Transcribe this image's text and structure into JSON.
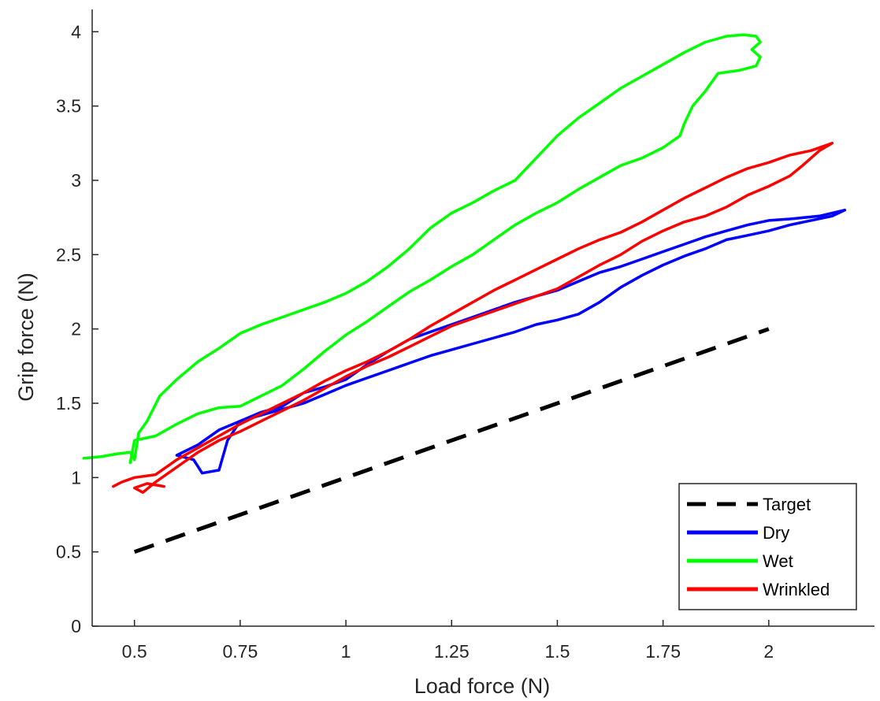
{
  "chart_data": {
    "type": "line",
    "title": "",
    "xlabel": "Load force (N)",
    "ylabel": "Grip force (N)",
    "xlim": [
      0.4,
      2.25
    ],
    "ylim": [
      0,
      4.15
    ],
    "x_ticks": [
      0.5,
      0.75,
      1,
      1.25,
      1.5,
      1.75,
      2
    ],
    "x_tick_labels": [
      "0.5",
      "0.75",
      "1",
      "1.25",
      "1.5",
      "1.75",
      "2"
    ],
    "y_ticks": [
      0,
      0.5,
      1,
      1.5,
      2,
      2.5,
      3,
      3.5,
      4
    ],
    "y_tick_labels": [
      "0",
      "0.5",
      "1",
      "1.5",
      "2",
      "2.5",
      "3",
      "3.5",
      "4"
    ],
    "grid": false,
    "legend_position": "bottom-right",
    "series": [
      {
        "name": "Target",
        "color": "#000000",
        "style": "dashed",
        "points": [
          [
            0.5,
            0.5
          ],
          [
            2.0,
            2.0
          ]
        ]
      },
      {
        "name": "Dry",
        "color": "#0000ff",
        "style": "solid",
        "points": [
          [
            0.6,
            1.15
          ],
          [
            0.65,
            1.22
          ],
          [
            0.7,
            1.32
          ],
          [
            0.75,
            1.38
          ],
          [
            0.8,
            1.42
          ],
          [
            0.85,
            1.46
          ],
          [
            0.9,
            1.5
          ],
          [
            0.95,
            1.56
          ],
          [
            1.0,
            1.62
          ],
          [
            1.05,
            1.67
          ],
          [
            1.1,
            1.72
          ],
          [
            1.15,
            1.77
          ],
          [
            1.2,
            1.82
          ],
          [
            1.25,
            1.86
          ],
          [
            1.3,
            1.9
          ],
          [
            1.35,
            1.94
          ],
          [
            1.4,
            1.98
          ],
          [
            1.45,
            2.03
          ],
          [
            1.5,
            2.06
          ],
          [
            1.55,
            2.1
          ],
          [
            1.6,
            2.18
          ],
          [
            1.65,
            2.28
          ],
          [
            1.7,
            2.36
          ],
          [
            1.75,
            2.43
          ],
          [
            1.8,
            2.49
          ],
          [
            1.85,
            2.54
          ],
          [
            1.9,
            2.6
          ],
          [
            1.95,
            2.63
          ],
          [
            2.0,
            2.66
          ],
          [
            2.05,
            2.7
          ],
          [
            2.1,
            2.73
          ],
          [
            2.15,
            2.76
          ],
          [
            2.18,
            2.8
          ],
          [
            2.12,
            2.76
          ],
          [
            2.05,
            2.74
          ],
          [
            2.0,
            2.73
          ],
          [
            1.95,
            2.7
          ],
          [
            1.9,
            2.66
          ],
          [
            1.85,
            2.62
          ],
          [
            1.8,
            2.57
          ],
          [
            1.75,
            2.52
          ],
          [
            1.7,
            2.47
          ],
          [
            1.65,
            2.42
          ],
          [
            1.6,
            2.38
          ],
          [
            1.55,
            2.32
          ],
          [
            1.5,
            2.26
          ],
          [
            1.45,
            2.22
          ],
          [
            1.4,
            2.18
          ],
          [
            1.35,
            2.13
          ],
          [
            1.3,
            2.08
          ],
          [
            1.25,
            2.03
          ],
          [
            1.2,
            1.98
          ],
          [
            1.15,
            1.93
          ],
          [
            1.1,
            1.85
          ],
          [
            1.05,
            1.76
          ],
          [
            1.0,
            1.66
          ],
          [
            0.95,
            1.61
          ],
          [
            0.9,
            1.57
          ],
          [
            0.85,
            1.48
          ],
          [
            0.8,
            1.44
          ],
          [
            0.75,
            1.38
          ],
          [
            0.72,
            1.25
          ],
          [
            0.7,
            1.05
          ],
          [
            0.66,
            1.03
          ],
          [
            0.64,
            1.12
          ],
          [
            0.6,
            1.15
          ]
        ]
      },
      {
        "name": "Wet",
        "color": "#00ff00",
        "style": "solid",
        "points": [
          [
            0.38,
            1.13
          ],
          [
            0.42,
            1.14
          ],
          [
            0.46,
            1.16
          ],
          [
            0.49,
            1.17
          ],
          [
            0.5,
            1.12
          ],
          [
            0.51,
            1.3
          ],
          [
            0.53,
            1.38
          ],
          [
            0.56,
            1.55
          ],
          [
            0.6,
            1.66
          ],
          [
            0.65,
            1.78
          ],
          [
            0.7,
            1.87
          ],
          [
            0.75,
            1.97
          ],
          [
            0.8,
            2.03
          ],
          [
            0.85,
            2.08
          ],
          [
            0.9,
            2.13
          ],
          [
            0.95,
            2.18
          ],
          [
            1.0,
            2.24
          ],
          [
            1.05,
            2.32
          ],
          [
            1.1,
            2.42
          ],
          [
            1.15,
            2.54
          ],
          [
            1.2,
            2.68
          ],
          [
            1.25,
            2.78
          ],
          [
            1.3,
            2.85
          ],
          [
            1.35,
            2.93
          ],
          [
            1.4,
            3.0
          ],
          [
            1.45,
            3.15
          ],
          [
            1.5,
            3.3
          ],
          [
            1.55,
            3.42
          ],
          [
            1.6,
            3.52
          ],
          [
            1.65,
            3.62
          ],
          [
            1.7,
            3.7
          ],
          [
            1.75,
            3.78
          ],
          [
            1.8,
            3.86
          ],
          [
            1.85,
            3.93
          ],
          [
            1.9,
            3.97
          ],
          [
            1.94,
            3.98
          ],
          [
            1.97,
            3.97
          ],
          [
            1.98,
            3.93
          ],
          [
            1.96,
            3.88
          ],
          [
            1.98,
            3.83
          ],
          [
            1.97,
            3.77
          ],
          [
            1.93,
            3.74
          ],
          [
            1.88,
            3.72
          ],
          [
            1.85,
            3.6
          ],
          [
            1.82,
            3.5
          ],
          [
            1.8,
            3.38
          ],
          [
            1.79,
            3.3
          ],
          [
            1.75,
            3.22
          ],
          [
            1.7,
            3.15
          ],
          [
            1.65,
            3.1
          ],
          [
            1.6,
            3.02
          ],
          [
            1.55,
            2.94
          ],
          [
            1.5,
            2.85
          ],
          [
            1.45,
            2.78
          ],
          [
            1.4,
            2.7
          ],
          [
            1.35,
            2.6
          ],
          [
            1.3,
            2.5
          ],
          [
            1.25,
            2.42
          ],
          [
            1.2,
            2.33
          ],
          [
            1.15,
            2.25
          ],
          [
            1.1,
            2.15
          ],
          [
            1.05,
            2.05
          ],
          [
            1.0,
            1.96
          ],
          [
            0.95,
            1.85
          ],
          [
            0.9,
            1.73
          ],
          [
            0.85,
            1.62
          ],
          [
            0.8,
            1.55
          ],
          [
            0.75,
            1.48
          ],
          [
            0.7,
            1.47
          ],
          [
            0.65,
            1.43
          ],
          [
            0.6,
            1.36
          ],
          [
            0.55,
            1.28
          ],
          [
            0.5,
            1.25
          ],
          [
            0.49,
            1.1
          ]
        ]
      },
      {
        "name": "Wrinkled",
        "color": "#ff0000",
        "style": "solid",
        "points": [
          [
            0.45,
            0.94
          ],
          [
            0.47,
            0.97
          ],
          [
            0.5,
            1.0
          ],
          [
            0.55,
            1.02
          ],
          [
            0.6,
            1.12
          ],
          [
            0.65,
            1.2
          ],
          [
            0.7,
            1.28
          ],
          [
            0.75,
            1.36
          ],
          [
            0.8,
            1.43
          ],
          [
            0.85,
            1.5
          ],
          [
            0.9,
            1.57
          ],
          [
            0.95,
            1.65
          ],
          [
            1.0,
            1.72
          ],
          [
            1.05,
            1.78
          ],
          [
            1.1,
            1.85
          ],
          [
            1.15,
            1.93
          ],
          [
            1.2,
            2.02
          ],
          [
            1.25,
            2.1
          ],
          [
            1.3,
            2.18
          ],
          [
            1.35,
            2.26
          ],
          [
            1.4,
            2.33
          ],
          [
            1.45,
            2.4
          ],
          [
            1.5,
            2.47
          ],
          [
            1.55,
            2.54
          ],
          [
            1.6,
            2.6
          ],
          [
            1.65,
            2.65
          ],
          [
            1.7,
            2.72
          ],
          [
            1.75,
            2.8
          ],
          [
            1.8,
            2.88
          ],
          [
            1.85,
            2.95
          ],
          [
            1.9,
            3.02
          ],
          [
            1.95,
            3.08
          ],
          [
            2.0,
            3.12
          ],
          [
            2.05,
            3.17
          ],
          [
            2.1,
            3.2
          ],
          [
            2.15,
            3.25
          ],
          [
            2.12,
            3.2
          ],
          [
            2.08,
            3.1
          ],
          [
            2.05,
            3.03
          ],
          [
            2.0,
            2.96
          ],
          [
            1.95,
            2.9
          ],
          [
            1.9,
            2.82
          ],
          [
            1.85,
            2.76
          ],
          [
            1.8,
            2.72
          ],
          [
            1.75,
            2.66
          ],
          [
            1.7,
            2.59
          ],
          [
            1.65,
            2.5
          ],
          [
            1.6,
            2.43
          ],
          [
            1.55,
            2.35
          ],
          [
            1.5,
            2.27
          ],
          [
            1.45,
            2.22
          ],
          [
            1.4,
            2.17
          ],
          [
            1.35,
            2.12
          ],
          [
            1.3,
            2.07
          ],
          [
            1.25,
            2.02
          ],
          [
            1.2,
            1.95
          ],
          [
            1.15,
            1.88
          ],
          [
            1.1,
            1.81
          ],
          [
            1.05,
            1.75
          ],
          [
            1.0,
            1.68
          ],
          [
            0.95,
            1.6
          ],
          [
            0.9,
            1.52
          ],
          [
            0.85,
            1.45
          ],
          [
            0.8,
            1.38
          ],
          [
            0.75,
            1.31
          ],
          [
            0.7,
            1.25
          ],
          [
            0.65,
            1.17
          ],
          [
            0.6,
            1.07
          ],
          [
            0.55,
            0.97
          ],
          [
            0.52,
            0.9
          ],
          [
            0.5,
            0.93
          ],
          [
            0.53,
            0.96
          ],
          [
            0.57,
            0.94
          ]
        ]
      }
    ]
  }
}
